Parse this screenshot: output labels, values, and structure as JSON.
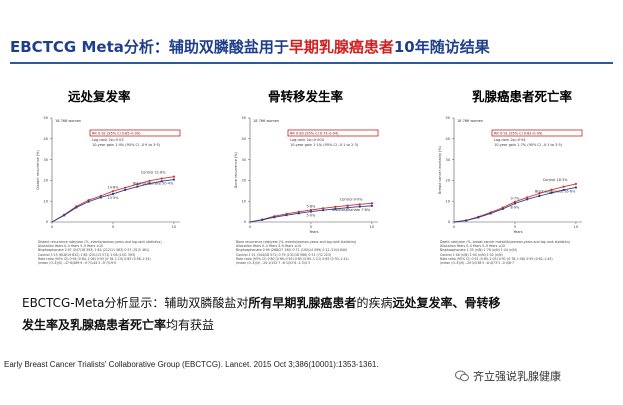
{
  "header": {
    "title_pre": "EBCTCG Meta分析：辅助双膦酸盐用于",
    "title_highlight": "早期乳腺癌患者",
    "title_post": "10年随访结果"
  },
  "colors": {
    "title": "#1f3f8c",
    "highlight": "#d21f1f",
    "control": "#d03030",
    "bisphosphonate": "#2a3e8f"
  },
  "panels": [
    {
      "title": "远处复发率",
      "chart_data": {
        "type": "line",
        "population": "18 766 women",
        "ylabel": "Distant recurrence (%)",
        "ylim": [
          0,
          50
        ],
        "yticks": [
          "0",
          "10",
          "20",
          "30",
          "40",
          "50"
        ],
        "xticks": [
          "0",
          "5",
          "10"
        ],
        "rr_box": "RR 0·92 (95% CI 0·85–0·99)",
        "logrank": "Log-rank 2p=0·03",
        "gain": "10-year gain 1·4% (95% CI –0·9 to 3·5)",
        "series": [
          {
            "name": "Control",
            "end_label": "Control 21·8%",
            "x": [
              0,
              1,
              2,
              3,
              4,
              5,
              6,
              7,
              8,
              9,
              10
            ],
            "values": [
              0,
              3.5,
              7.5,
              10.5,
              12.5,
              14.8,
              16.5,
              18.2,
              19.8,
              20.9,
              21.8
            ]
          },
          {
            "name": "Bisphosphonate",
            "end_label": "Bisphosphonate 20·4%",
            "x": [
              0,
              1,
              2,
              3,
              4,
              5,
              6,
              7,
              8,
              9,
              10
            ],
            "values": [
              0,
              3.2,
              7.0,
              9.8,
              11.8,
              13.5,
              15.4,
              17.0,
              18.5,
              19.6,
              20.4
            ]
          }
        ],
        "mid_labels": [
          "14·8%",
          "13·5%"
        ],
        "table": [
          "Distant recurrence rate/year (%, events/woman-years and log-rank statistics)",
          "Allocation     Years 0–4     Years 5–9     Years ≥10",
          "Bisphosphonate   2·97 (547/18 393)   1·84 (212/11 563)   0·57 (31/5 461)",
          "Control          3·15 (618/19 632)   1·85 (251/13 571)   1·08 (15/1 393)",
          "Rate ratio (95% CI)   0·94 (0·84–1·06)   0·93 (0·78–1·10)   0·85 (0·58–1·24)",
          "(mean (O–E)/V)   –47·6/489·9   –9·7/144·3   –9·7/19·9"
        ]
      }
    },
    {
      "title": "骨转移发生率",
      "chart_data": {
        "type": "line",
        "population": "18 766 women",
        "ylabel": "Bone recurrence (%)",
        "ylim": [
          0,
          50
        ],
        "yticks": [
          "0",
          "10",
          "20",
          "30",
          "40",
          "50"
        ],
        "xticks": [
          "0",
          "5",
          "10"
        ],
        "xlabel": "Years",
        "rr_box": "RR 0·83 (95% CI 0·73–0·94)",
        "logrank": "Log-rank 2p=0·004",
        "gain": "10-year gain 1·1% (95% CI –0·1 to 2·3)",
        "series": [
          {
            "name": "Control",
            "end_label": "Control 9·0%",
            "x": [
              0,
              1,
              2,
              3,
              4,
              5,
              6,
              7,
              8,
              9,
              10
            ],
            "values": [
              0,
              1.2,
              2.8,
              3.9,
              4.9,
              5.8,
              6.6,
              7.3,
              7.9,
              8.5,
              9.0
            ]
          },
          {
            "name": "Bisphosphonate",
            "end_label": "Bisphosphonate 7·8%",
            "x": [
              0,
              1,
              2,
              3,
              4,
              5,
              6,
              7,
              8,
              9,
              10
            ],
            "values": [
              0,
              1.0,
              2.3,
              3.3,
              4.2,
              5.0,
              5.7,
              6.3,
              6.9,
              7.4,
              7.8
            ]
          }
        ],
        "mid_labels": [
          "5·8%",
          "5·0%"
        ],
        "table": [
          "Bone recurrence rate/year (%, events/woman-years and log-rank statistics)",
          "Allocation     Years 0–4     Years 5–9     Years ≥10",
          "Bisphosphonate   0·99 (268/27 190)   0·71 (100/14 099)   0·21 (10/4 840)",
          "Control          1·21 (344/28 571)   0·79 (131/16 566)   0·31 (7/2 223)",
          "Rate ratio (95% CI)   0·80 (0·69–0·93)   0·85 (0·65–1·11)   0·65 (0·30–1·41)",
          "(mean (O–E)/V)   –34·1/152·7   –6·1/52·6   –1·5/4·3"
        ]
      }
    },
    {
      "title": "乳腺癌患者死亡率",
      "chart_data": {
        "type": "line",
        "population": "18 766 women",
        "ylabel": "Breast cancer mortality (%)",
        "ylim": [
          0,
          50
        ],
        "yticks": [
          "0",
          "10",
          "20",
          "30",
          "40",
          "50"
        ],
        "xticks": [
          "0",
          "5",
          "10"
        ],
        "xlabel": "Years",
        "rr_box": "RR 0·91 (95% CI 0·83–0·99)",
        "logrank": "Log-rank 2p=0·04",
        "gain": "10-year gain 1·7% (95% CI –0·1 to 3·5)",
        "series": [
          {
            "name": "Control",
            "end_label": "Control 18·3%",
            "x": [
              0,
              1,
              2,
              3,
              4,
              5,
              6,
              7,
              8,
              9,
              10
            ],
            "values": [
              0,
              0.8,
              2.5,
              4.6,
              6.9,
              9.7,
              11.8,
              13.7,
              15.5,
              17.0,
              18.3
            ]
          },
          {
            "name": "Bisphosphonate",
            "end_label": "Bisphosphonate 16·6%",
            "x": [
              0,
              1,
              2,
              3,
              4,
              5,
              6,
              7,
              8,
              9,
              10
            ],
            "values": [
              0,
              0.7,
              2.2,
              4.1,
              6.3,
              8.9,
              10.9,
              12.5,
              14.0,
              15.4,
              16.6
            ]
          }
        ],
        "mid_labels": [
          "9·7%",
          "8·9%"
        ],
        "table": [
          "Death rate/year (%, breast cancer mortality/woman-years and log-rank statistics)",
          "Allocation     Years 0–4     Years 5–9     Years ≥10",
          "Bisphosphonate   1·35 (n/N)   1·76 (n/N)   1·44 (n/N)",
          "Control          1·48 (n/N)   1·94 (n/N)   1·52 (n/N)",
          "Rate ratio (95% CI)   0·91 (0·80–1·03)   0·91 (0·78–1·06)   0·95 (0·62–1·45)",
          "(mean (O–E)/V)   –20·5/238·5   –8·4/73·3   –0·4/6·7"
        ]
      }
    }
  ],
  "summary": {
    "line1_a": "EBCTCG-Meta分析显示：辅助双膦酸盐对",
    "line1_b": "所有早期乳腺癌患者",
    "line1_c": "的疾病",
    "line1_d": "远处复发率、骨转移",
    "line2_a": "发生率及乳腺癌患者死亡率",
    "line2_b": "均有获益"
  },
  "citation": "Early Breast Cancer Trialists' Collaborative Group (EBCTCG). Lancet. 2015 Oct 3;386(10001):1353-1361.",
  "brand": {
    "name": "齐立强说乳腺健康",
    "icon": "wechat-icon"
  }
}
